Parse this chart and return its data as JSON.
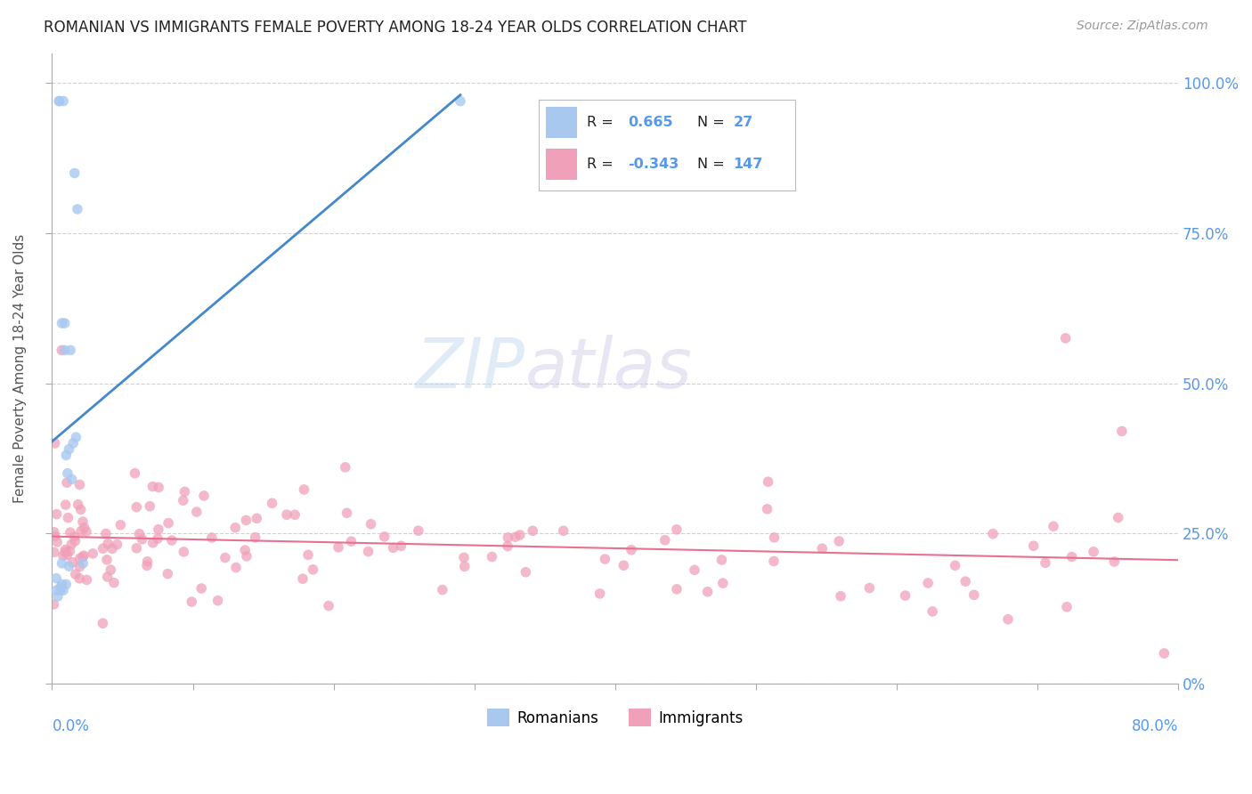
{
  "title": "ROMANIAN VS IMMIGRANTS FEMALE POVERTY AMONG 18-24 YEAR OLDS CORRELATION CHART",
  "source": "Source: ZipAtlas.com",
  "ylabel": "Female Poverty Among 18-24 Year Olds",
  "ytick_vals": [
    0.0,
    0.25,
    0.5,
    0.75,
    1.0
  ],
  "ytick_labels": [
    "0%",
    "25.0%",
    "50.0%",
    "75.0%",
    "100.0%"
  ],
  "xlim": [
    0.0,
    0.8
  ],
  "ylim": [
    0.0,
    1.05
  ],
  "watermark_zip": "ZIP",
  "watermark_atlas": "atlas",
  "romanian_color": "#a8c8f0",
  "immigrant_color": "#f0a0b8",
  "romanian_line_color": "#4488cc",
  "immigrant_line_color": "#e87090",
  "background_color": "#ffffff",
  "grid_color": "#cccccc",
  "title_color": "#222222",
  "axis_label_color": "#5599ee",
  "legend_r1_black": "R = ",
  "legend_r1_val": "0.665",
  "legend_n1_label": "N = ",
  "legend_n1_val": "27",
  "legend_r2_black": "R = ",
  "legend_r2_val": "-0.343",
  "legend_n2_label": "N = ",
  "legend_n2_val": "147",
  "rom_x": [
    0.003,
    0.003,
    0.004,
    0.005,
    0.005,
    0.006,
    0.006,
    0.007,
    0.007,
    0.007,
    0.008,
    0.008,
    0.009,
    0.009,
    0.01,
    0.01,
    0.011,
    0.012,
    0.012,
    0.013,
    0.014,
    0.015,
    0.016,
    0.017,
    0.018,
    0.022,
    0.29
  ],
  "rom_y": [
    0.175,
    0.155,
    0.145,
    0.97,
    0.97,
    0.155,
    0.16,
    0.6,
    0.165,
    0.2,
    0.97,
    0.155,
    0.6,
    0.555,
    0.38,
    0.165,
    0.35,
    0.39,
    0.195,
    0.555,
    0.34,
    0.4,
    0.85,
    0.41,
    0.79,
    0.2,
    0.97
  ],
  "imm_intercept": 0.245,
  "imm_slope": -0.075
}
